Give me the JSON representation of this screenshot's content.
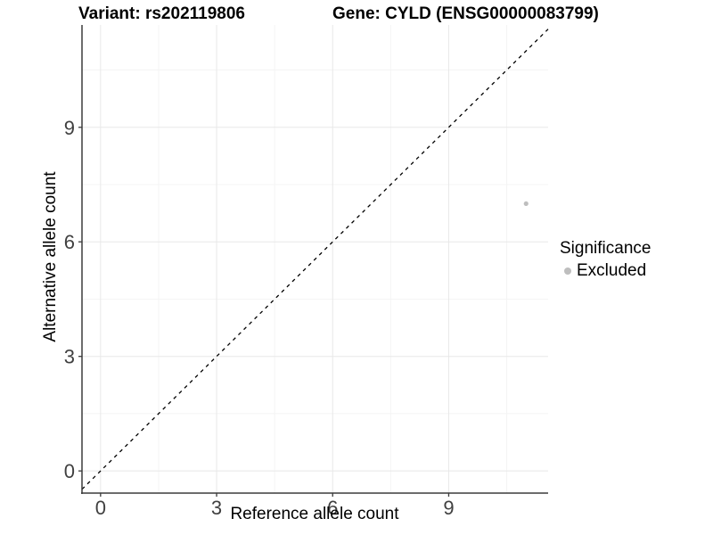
{
  "header": {
    "title_left": "Variant: rs202119806",
    "title_right": "Gene: CYLD (ENSG00000083799)"
  },
  "chart_data": {
    "type": "scatter",
    "title": "Variant: rs202119806 — Gene: CYLD (ENSG00000083799)",
    "xlabel": "Reference allele count",
    "ylabel": "Alternative allele count",
    "x_ticks": [
      0,
      3,
      6,
      9
    ],
    "y_ticks": [
      0,
      3,
      6,
      9
    ],
    "x_minor_ticks": [
      1.5,
      4.5,
      7.5,
      10.5
    ],
    "y_minor_ticks": [
      1.5,
      4.5,
      7.5,
      10.5
    ],
    "xlim": [
      -0.48,
      11.57
    ],
    "ylim": [
      -0.58,
      11.68
    ],
    "grid": true,
    "points": [
      {
        "x": 11,
        "y": 7,
        "group": "Excluded"
      }
    ],
    "identity_line": {
      "slope": 1,
      "intercept": 0,
      "style": "dashed",
      "color": "#000000"
    },
    "legend": {
      "title": "Significance",
      "position": "right",
      "items": [
        {
          "label": "Excluded",
          "color": "#bebebe"
        }
      ]
    },
    "colors": {
      "background": "#ffffff",
      "major_grid": "#e8e8e8",
      "minor_grid": "#f4f4f4",
      "axis_line": "#3b3b3b",
      "tick_mark": "#3b3b3b",
      "tick_label": "#404040",
      "point": "#bebebe"
    }
  }
}
